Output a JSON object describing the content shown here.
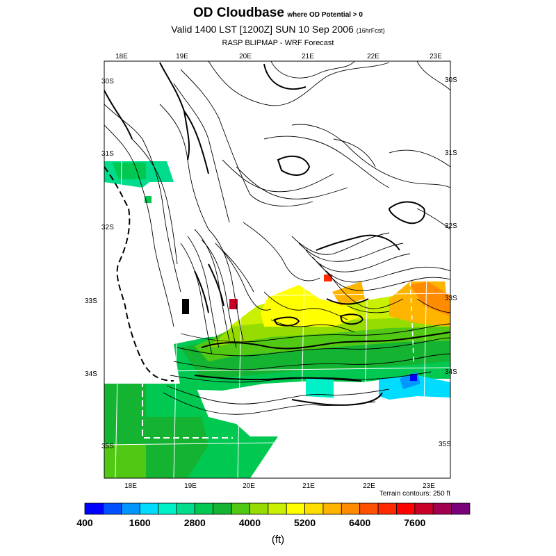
{
  "title": {
    "main": "OD Cloudbase",
    "condition": "where OD Potential > 0",
    "valid": "Valid 1400 LST [1200Z] SUN 10 Sep 2006",
    "forecast_tag": "(16hrFcst)",
    "subtitle": "RASP BLIPMAP - WRF Forecast"
  },
  "map": {
    "top_longitudes": [
      "18E",
      "19E",
      "20E",
      "21E",
      "22E",
      "23E"
    ],
    "bottom_longitudes": [
      "18E",
      "19E",
      "20E",
      "21E",
      "22E",
      "23E"
    ],
    "left_latitudes": [
      "30S",
      "31S",
      "32S",
      "33S",
      "34S",
      "35S"
    ],
    "right_latitudes": [
      "30S",
      "31S",
      "32S",
      "33S",
      "34S",
      "35S"
    ],
    "terrain_note": "Terrain contours: 250 ft"
  },
  "colorbar": {
    "colors": [
      "#0000ff",
      "#0050ff",
      "#0096ff",
      "#00dcff",
      "#00f0c8",
      "#00dc8c",
      "#00c850",
      "#14b432",
      "#50c814",
      "#96dc00",
      "#c8f000",
      "#ffff00",
      "#ffdc00",
      "#ffb400",
      "#ff8c00",
      "#ff5000",
      "#ff2800",
      "#ff0000",
      "#c80028",
      "#a00050",
      "#780078"
    ],
    "labels": [
      "400",
      "1600",
      "2800",
      "4000",
      "5200",
      "6400",
      "7600"
    ],
    "unit": "(ft)"
  }
}
